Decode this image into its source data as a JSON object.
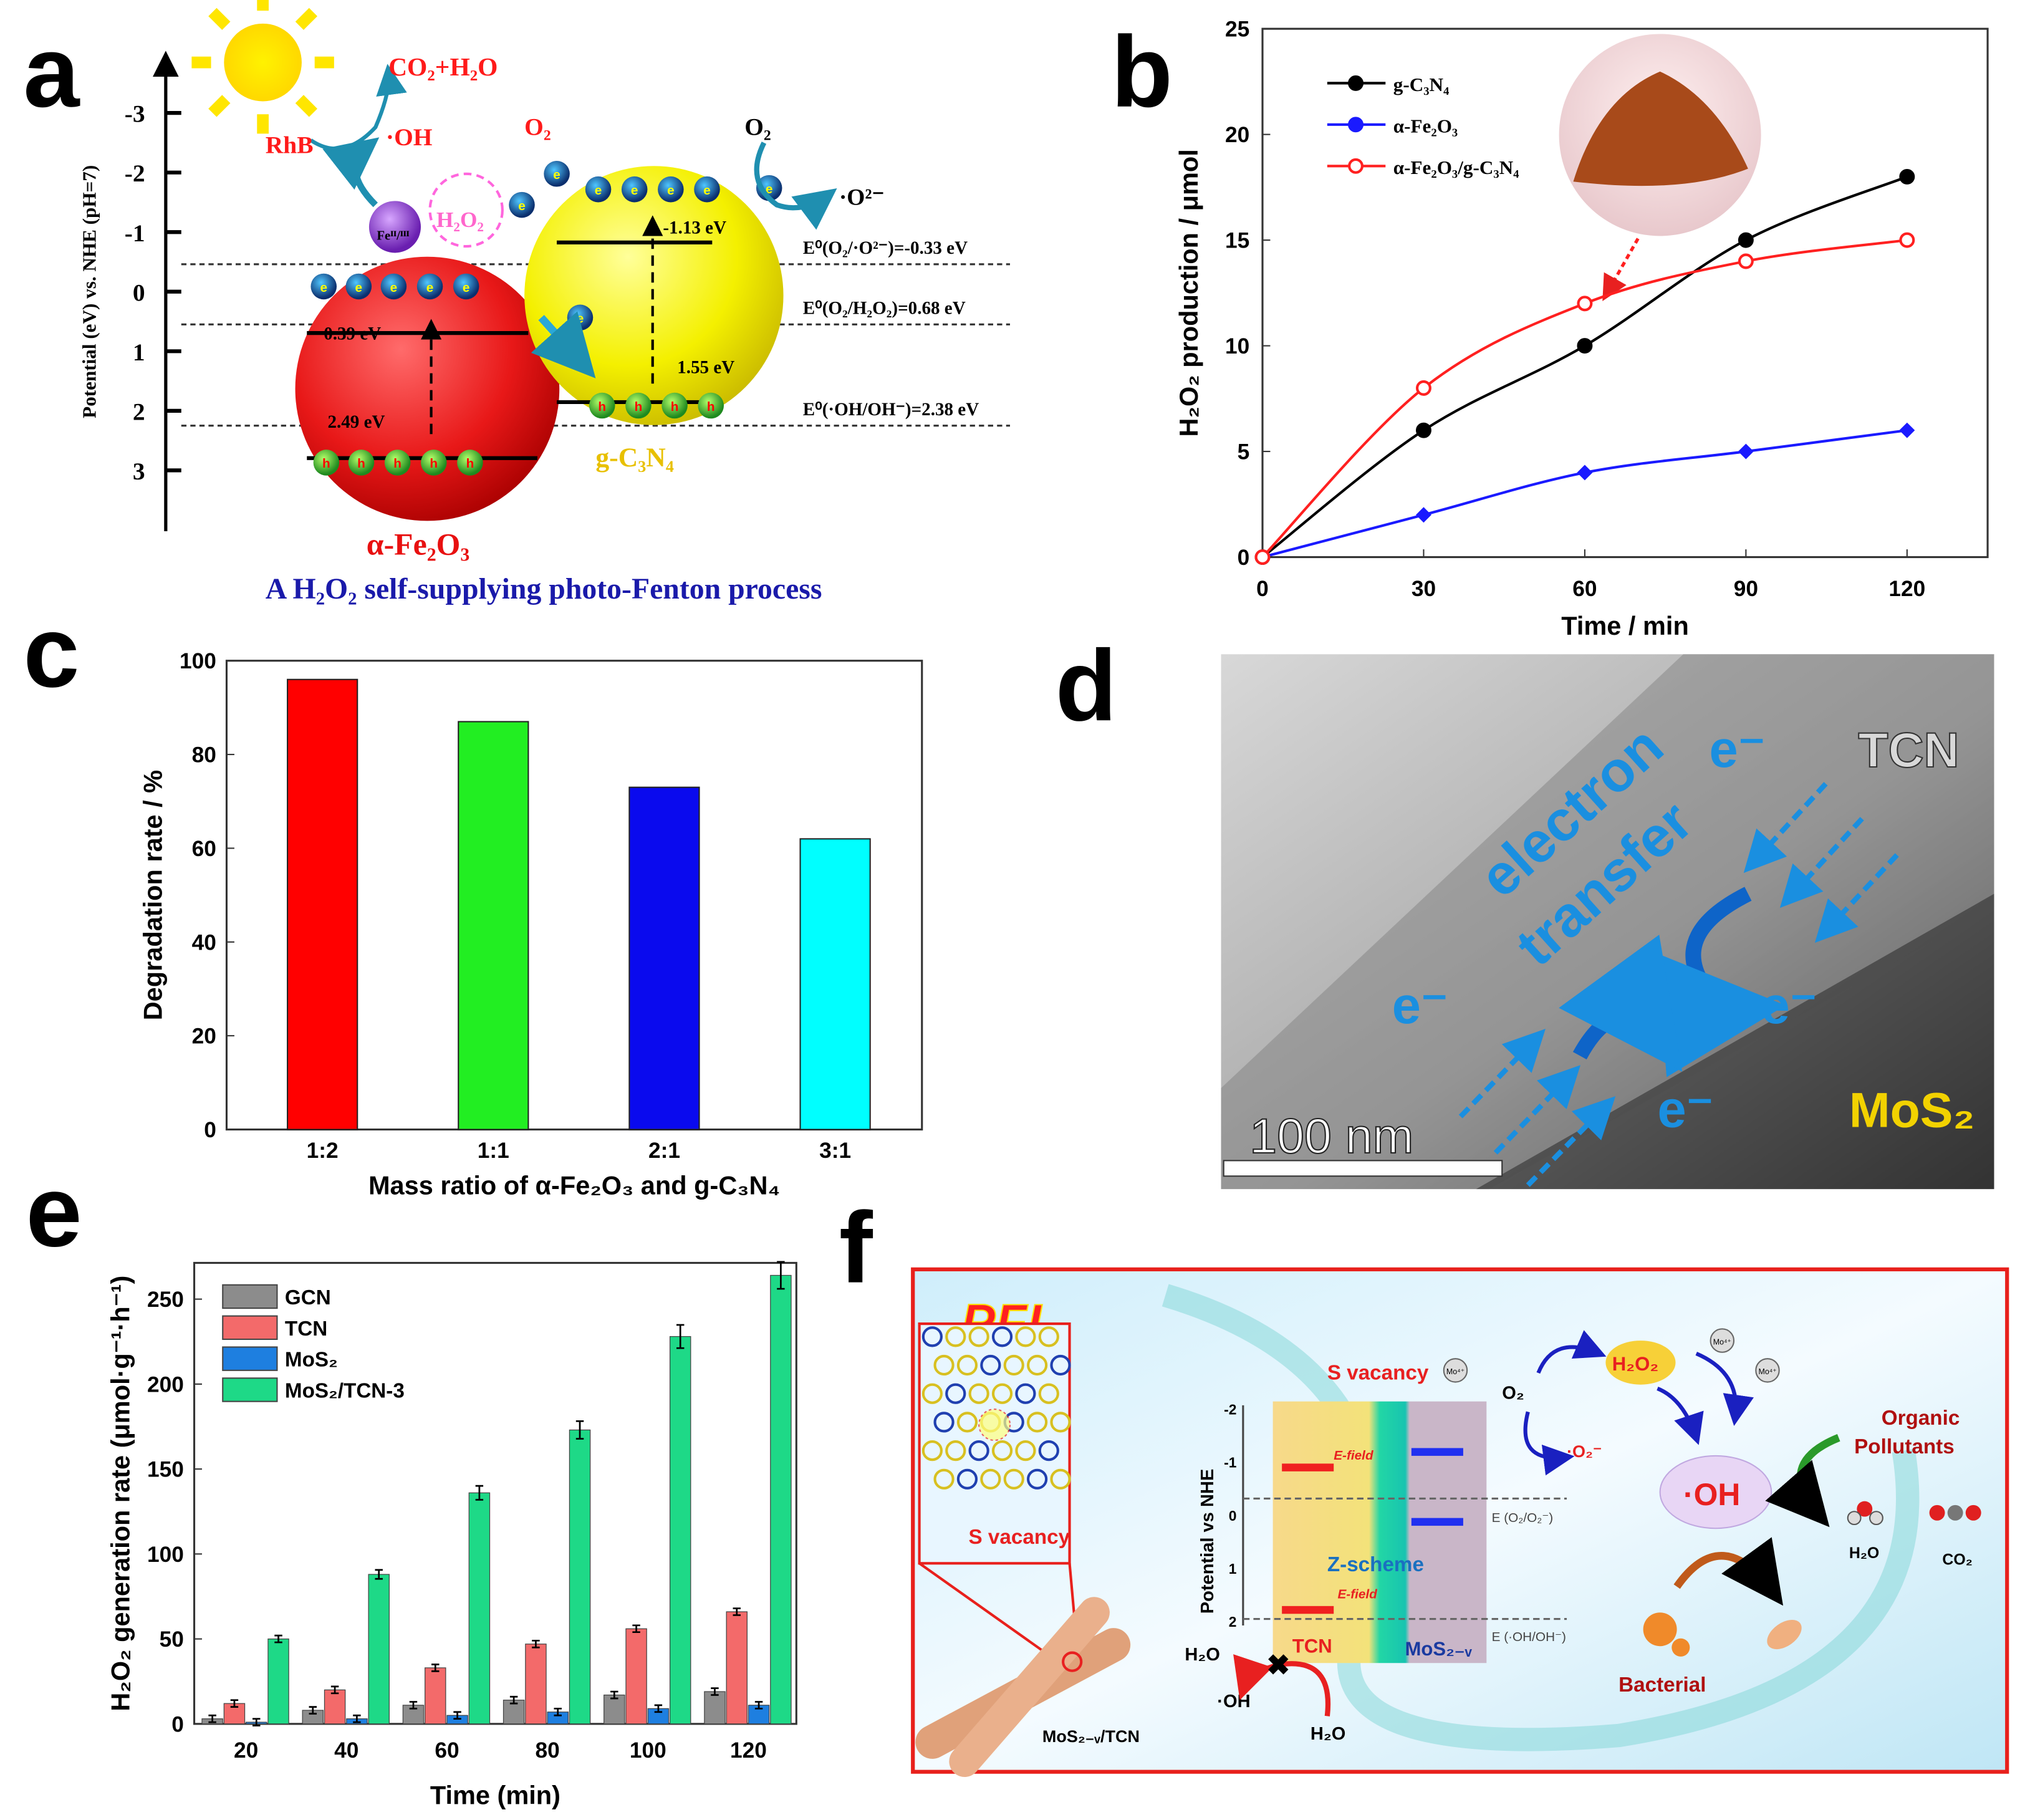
{
  "panel_labels": [
    "a",
    "b",
    "c",
    "d",
    "e",
    "f"
  ],
  "panel_a": {
    "axis_label": "Potential (eV) vs. NHE (pH=7)",
    "ticks": [
      "-3",
      "-2",
      "-1",
      "0",
      "1",
      "2",
      "3"
    ],
    "tick_values": [
      -3,
      -2,
      -1,
      0,
      1,
      2,
      3
    ],
    "redox_lines": [
      {
        "label": "E⁰(O₂/·O²⁻)=-0.33 eV",
        "value": -0.33
      },
      {
        "label": "E⁰(O₂/H₂O₂)=0.68 eV",
        "value": 0.68
      },
      {
        "label": "E⁰(·OH/OH⁻)=2.38 eV",
        "value": 2.38
      }
    ],
    "fe2o3": {
      "name": "α-Fe₂O₃",
      "cb_label": "0.39 eV",
      "vb_label": "2.49 eV",
      "cb": 0.39,
      "vb": 2.49
    },
    "gcn": {
      "name": "g-C₃N₄",
      "cb_label": "-1.13 eV",
      "vb_label": "1.55 eV",
      "cb": -1.13,
      "vb": 1.55
    },
    "species": {
      "co2": "CO₂+H₂O",
      "rhb": "RhB",
      "oh": "·OH",
      "o2_left": "O₂",
      "o2_right": "O₂",
      "superoxide": "·O²⁻",
      "h2o2": "H₂O₂",
      "fe": "Feᴵᴵ/ᴵᴵᴵ",
      "electron": "e⁻",
      "hole": "h⁺"
    },
    "caption": "A H₂O₂ self-supplying photo-Fenton process"
  },
  "chart_data": [
    {
      "id": "b",
      "type": "line",
      "title": "",
      "xlabel": "Time / min",
      "ylabel": "H₂O₂ production / μmol",
      "xlim": [
        0,
        135
      ],
      "ylim": [
        0,
        25
      ],
      "xticks": [
        0,
        30,
        60,
        90,
        120
      ],
      "yticks": [
        0,
        5,
        10,
        15,
        20,
        25
      ],
      "legend_position": "top-left",
      "x": [
        0,
        30,
        60,
        90,
        120
      ],
      "series": [
        {
          "name": "g-C₃N₄",
          "color": "#000000",
          "marker": "circle",
          "values": [
            0,
            6,
            10,
            15,
            18
          ]
        },
        {
          "name": "α-Fe₂O₃",
          "color": "#1a1aff",
          "marker": "diamond",
          "values": [
            0,
            2,
            4,
            5,
            6
          ]
        },
        {
          "name": "α-Fe₂O₃/g-C₃N₄",
          "color": "#ff2020",
          "marker": "open-circle",
          "values": [
            0,
            8,
            12,
            14,
            15
          ]
        }
      ]
    },
    {
      "id": "c",
      "type": "bar",
      "title": "",
      "xlabel": "Mass ratio of α-Fe₂O₃ and g-C₃N₄",
      "ylabel": "Degradation rate / %",
      "ylim": [
        0,
        100
      ],
      "yticks": [
        0,
        20,
        40,
        60,
        80,
        100
      ],
      "categories": [
        "1:2",
        "1:1",
        "2:1",
        "3:1"
      ],
      "values": [
        96,
        87,
        73,
        62
      ],
      "colors": [
        "#ff0000",
        "#22ee22",
        "#0a0aee",
        "#00ffff"
      ]
    },
    {
      "id": "e",
      "type": "bar",
      "title": "",
      "xlabel": "Time (min)",
      "ylabel": "H₂O₂ generation rate (μmol·g⁻¹·h⁻¹)",
      "ylim": [
        0,
        275
      ],
      "yticks": [
        0,
        50,
        100,
        150,
        200,
        250
      ],
      "legend_position": "top-left",
      "categories": [
        "20",
        "40",
        "60",
        "80",
        "100",
        "120"
      ],
      "series": [
        {
          "name": "GCN",
          "color": "#8c8c8c",
          "values": [
            3,
            8,
            11,
            14,
            17,
            19
          ]
        },
        {
          "name": "TCN",
          "color": "#f36a6a",
          "values": [
            12,
            20,
            33,
            47,
            56,
            66
          ]
        },
        {
          "name": "MoS₂",
          "color": "#1e7fe0",
          "values": [
            1,
            3,
            5,
            7,
            9,
            11
          ]
        },
        {
          "name": "MoS₂/TCN-3",
          "color": "#1ed987",
          "values": [
            50,
            88,
            136,
            173,
            228,
            264
          ]
        }
      ]
    }
  ],
  "panel_d": {
    "label_tcn": "TCN",
    "label_mos2": "MoS₂",
    "label_electron_transfer_1": "electron",
    "label_electron_transfer_2": "transfer",
    "electron": "e⁻",
    "scale_bar": "100 nm"
  },
  "panel_f": {
    "title": "PFL",
    "s_vacancy_inset": "S vacancy",
    "s_vacancy_top": "S vacancy",
    "mo": "Mo⁴⁺",
    "axis_label": "Potential vs NHE",
    "ticks": [
      "-2",
      "-1",
      "0",
      "1",
      "2"
    ],
    "efield_top": "E-field",
    "efield_bottom": "E-field",
    "zscheme": "Z-scheme",
    "tcn": "TCN",
    "mos2v": "MoS₂₋ᵥ",
    "e_o2": "E (O₂/O₂⁻)",
    "e_oh": "E (·OH/OH⁻)",
    "o2": "O₂",
    "superoxide": "·O₂⁻",
    "h2o2": "H₂O₂",
    "oh": "·OH",
    "organic": "Organic",
    "pollutants": "Pollutants",
    "h2o_product": "H₂O",
    "co2_product": "CO₂",
    "bacterial": "Bacterial",
    "h2o_left": "H₂O",
    "oh_left": "·OH",
    "h2o_bottom": "H₂O",
    "composite": "MoS₂₋ᵥ/TCN"
  },
  "colors": {
    "accent_blue": "#1a8fe0",
    "panel_f_border": "#e8201c"
  }
}
